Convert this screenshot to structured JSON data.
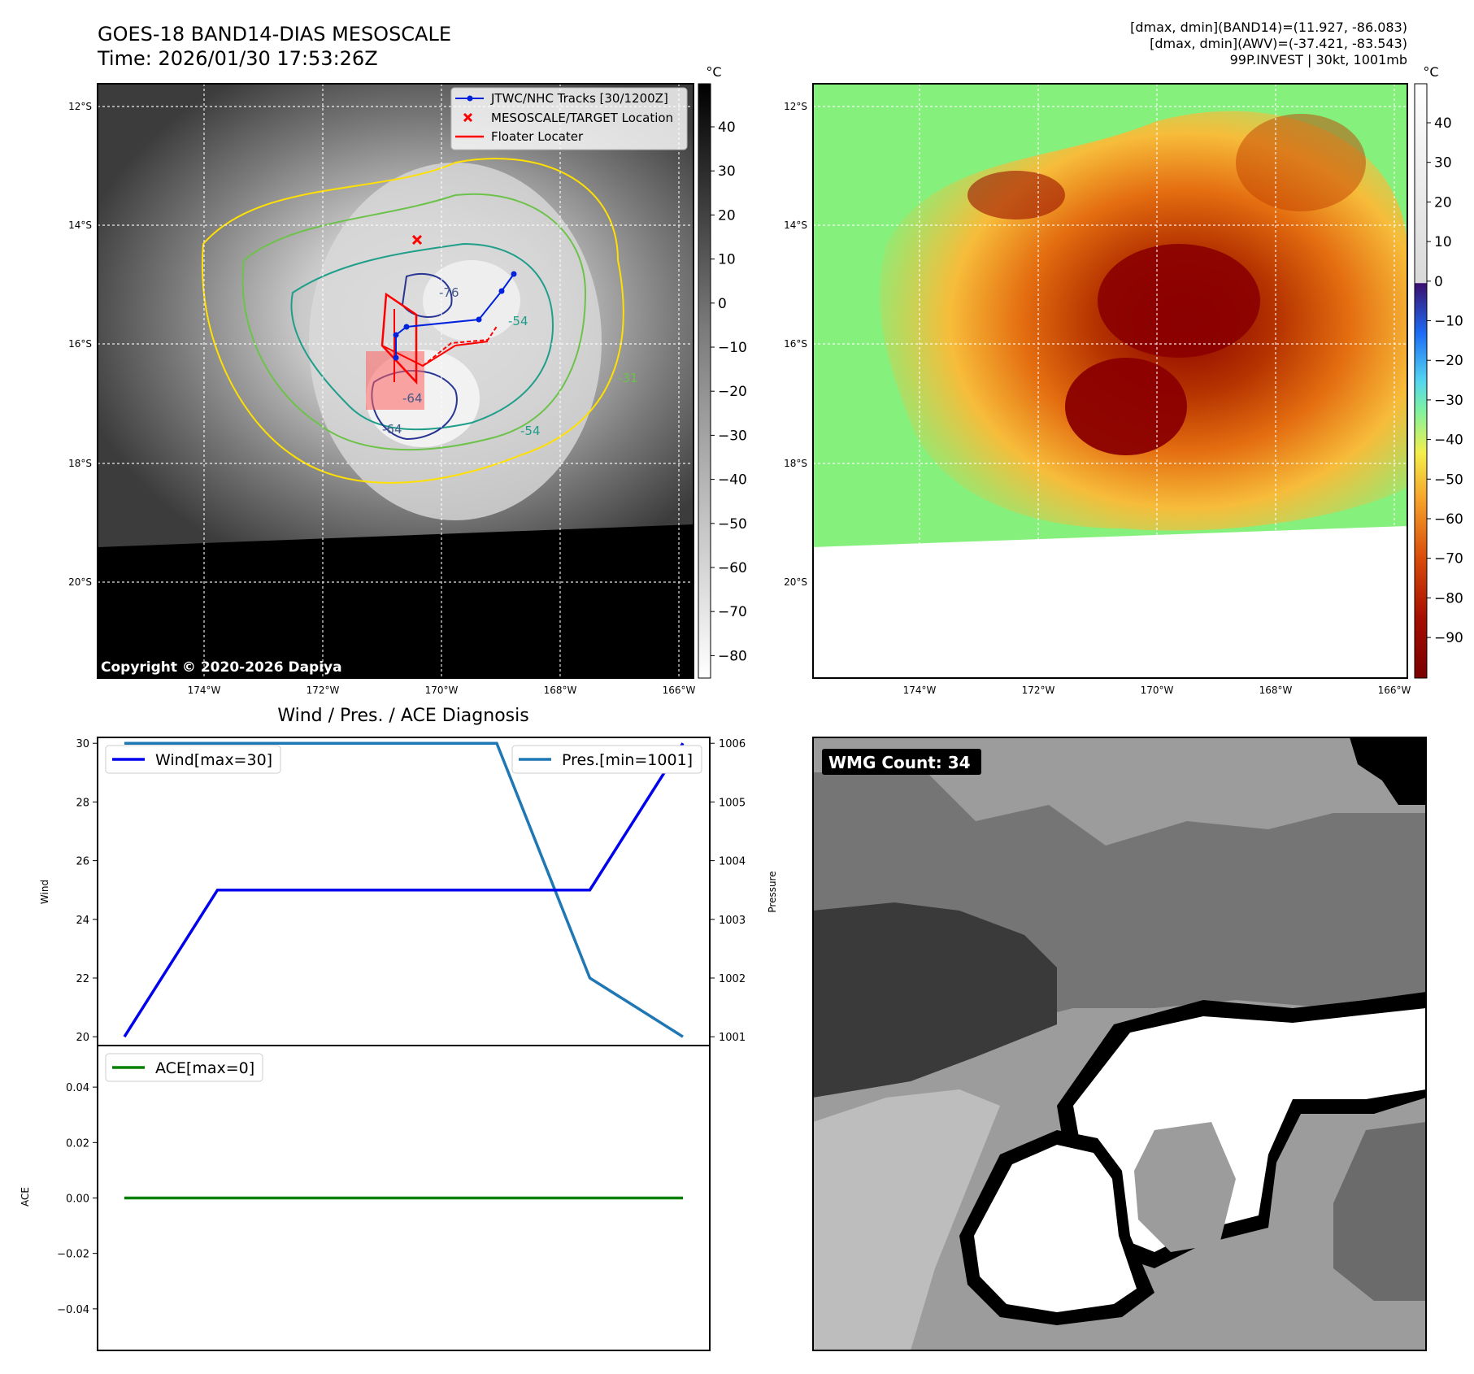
{
  "header": {
    "title_line1": "GOES-18 BAND14-DIAS MESOSCALE",
    "title_line2": "Time: 2026/01/30 17:53:26Z",
    "stats_line1": "[dmax, dmin](BAND14)=(11.927, -86.083)",
    "stats_line2": "[dmax, dmin](AWV)=(-37.421, -83.543)",
    "stats_line3": "99P.INVEST | 30kt, 1001mb"
  },
  "colors": {
    "wind": "#0000ee",
    "pressure": "#1f77b4",
    "ace": "#008000",
    "track": "#0022dd",
    "floater": "#ff0000"
  },
  "maps": {
    "lat_labels": [
      "12°S",
      "14°S",
      "16°S",
      "18°S",
      "20°S"
    ],
    "lon_labels": [
      "174°W",
      "172°W",
      "170°W",
      "168°W",
      "166°W"
    ],
    "legend": [
      "JTWC/NHC Tracks [30/1200Z]",
      "MESOSCALE/TARGET Location",
      "Floater Locater"
    ],
    "copyright": "Copyright © 2020-2026 Dapiya",
    "contour_labels": [
      "-76",
      "-64",
      "-64",
      "-54",
      "-31",
      "-54"
    ]
  },
  "colorbar_gray": {
    "unit": "°C",
    "ticks": [
      "40",
      "30",
      "20",
      "10",
      "0",
      "−10",
      "−20",
      "−30",
      "−40",
      "−50",
      "−60",
      "−70",
      "−80"
    ]
  },
  "colorbar_awv": {
    "unit": "°C",
    "ticks": [
      "40",
      "30",
      "20",
      "10",
      "0",
      "−10",
      "−20",
      "−30",
      "−40",
      "−50",
      "−60",
      "−70",
      "−80",
      "−90"
    ]
  },
  "diagnosis": {
    "title": "Wind / Pres. / ACE Diagnosis",
    "wind_legend": "Wind[max=30]",
    "pres_legend": "Pres.[min=1001]",
    "ace_legend": "ACE[max=0]",
    "wind_axis_label": "Wind",
    "pres_axis_label": "Pressure",
    "ace_axis_label": "ACE"
  },
  "wmg": {
    "label": "WMG Count: 34"
  },
  "chart_data": [
    {
      "type": "line",
      "series": [
        {
          "name": "Wind[max=30]",
          "axis": "left",
          "values": [
            20,
            25,
            25,
            25,
            25,
            25,
            30
          ]
        },
        {
          "name": "Pres.[min=1001]",
          "axis": "right",
          "values": [
            1006,
            1006,
            1006,
            1006,
            1006,
            1002,
            1001
          ]
        }
      ],
      "x": [
        0,
        1,
        2,
        3,
        4,
        5,
        6
      ],
      "ylabel": "Wind",
      "ylabel_right": "Pressure",
      "ylim": [
        19.7,
        30.2
      ],
      "ylim_right": [
        1000.85,
        1006.1
      ],
      "yticks": [
        20,
        22,
        24,
        26,
        28,
        30
      ],
      "yticks_right": [
        1001,
        1002,
        1003,
        1004,
        1005,
        1006
      ],
      "legend": "top-left / top-right"
    },
    {
      "type": "line",
      "series": [
        {
          "name": "ACE[max=0]",
          "values": [
            0,
            0,
            0,
            0,
            0,
            0,
            0
          ]
        }
      ],
      "x": [
        0,
        1,
        2,
        3,
        4,
        5,
        6
      ],
      "ylabel": "ACE",
      "ylim": [
        -0.055,
        0.055
      ],
      "yticks": [
        0.04,
        0.02,
        0.0,
        -0.02,
        -0.04
      ],
      "ytick_labels": [
        "0.04",
        "0.02",
        "0.00",
        "−0.02",
        "−0.04"
      ],
      "legend": "top-left"
    }
  ]
}
